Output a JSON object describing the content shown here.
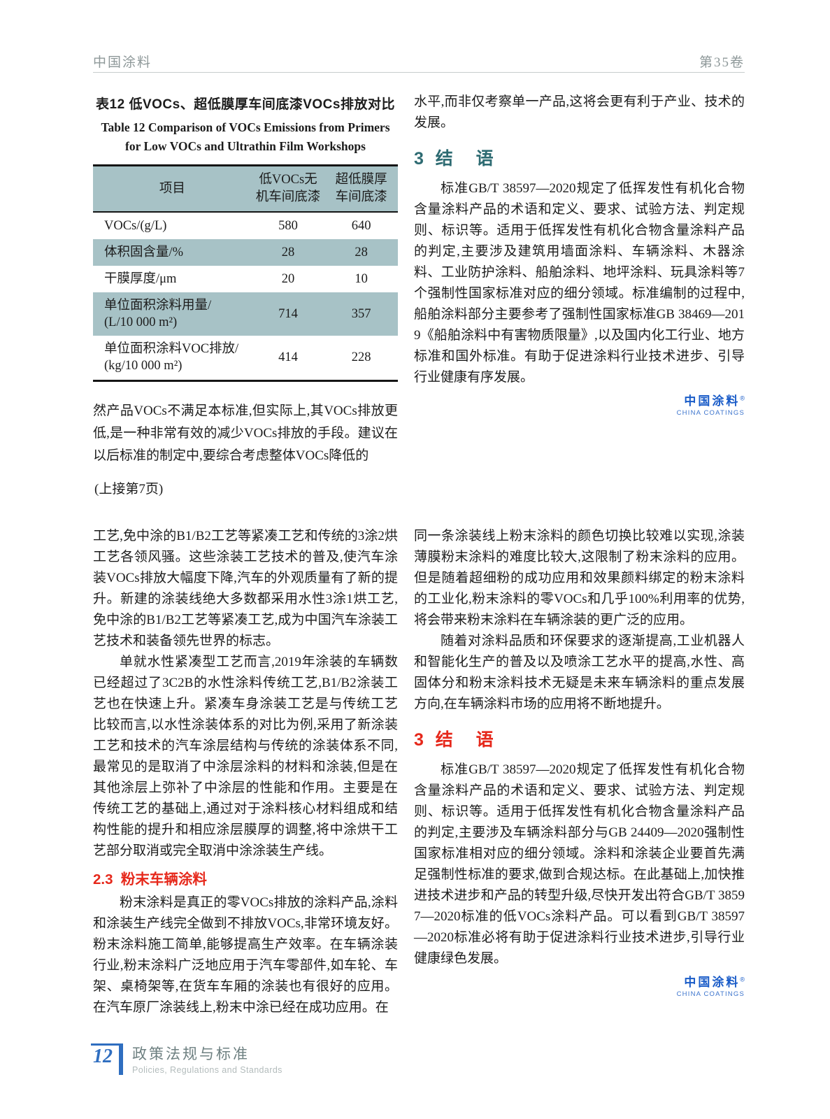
{
  "header": {
    "journal_name": "中国涂料",
    "volume": "第35卷"
  },
  "colors": {
    "table_shade": "#a7c2c6",
    "teal_heading": "#2e6b72",
    "red_heading": "#e6281b",
    "logo_blue": "#1a5cc8",
    "footer_blue": "#2f6ec0",
    "footer_gray": "#6e8081"
  },
  "table_section": {
    "title_zh": "表12  低VOCs、超低膜厚车间底漆VOCs排放对比",
    "title_en": "Table 12  Comparison of VOCs Emissions from Primers\nfor Low VOCs and Ultrathin Film Workshops",
    "columns": [
      "项目",
      "低VOCs无\n机车间底漆",
      "超低膜厚\n车间底漆"
    ],
    "rows": [
      {
        "label": "VOCs/(g/L)",
        "values": [
          "580",
          "640"
        ]
      },
      {
        "label": "体积固含量/%",
        "values": [
          "28",
          "28"
        ]
      },
      {
        "label": "干膜厚度/μm",
        "values": [
          "20",
          "10"
        ]
      },
      {
        "label": "单位面积涂料用量/\n(L/10 000 m²)",
        "values": [
          "714",
          "357"
        ]
      },
      {
        "label": "单位面积涂料VOC排放/\n(kg/10 000 m²)",
        "values": [
          "414",
          "228"
        ]
      }
    ]
  },
  "top_left": {
    "paragraph": "然产品VOCs不满足本标准,但实际上,其VOCs排放更低,是一种非常有效的减少VOCs排放的手段。建议在以后标准的制定中,要综合考虑整体VOCs降低的"
  },
  "top_right": {
    "paragraph_intro": "水平,而非仅考察单一产品,这将会更有利于产业、技术的发展。",
    "heading": "3  结    语",
    "paragraph": "标准GB/T 38597—2020规定了低挥发性有机化合物含量涂料产品的术语和定义、要求、试验方法、判定规则、标识等。适用于低挥发性有机化合物含量涂料产品的判定,主要涉及建筑用墙面涂料、车辆涂料、木器涂料、工业防护涂料、船舶涂料、地坪涂料、玩具涂料等7个强制性国家标准对应的细分领域。标准编制的过程中,船舶涂料部分主要参考了强制性国家标准GB 38469—2019《船舶涂料中有害物质限量》,以及国内化工行业、地方标准和国外标准。有助于促进涂料行业技术进步、引导行业健康有序发展。"
  },
  "logo": {
    "zh": "中国涂料",
    "mark": "®",
    "en": "CHINA COATINGS"
  },
  "continuation_note": "(上接第7页)",
  "bottom_left": {
    "p1": "工艺,免中涂的B1/B2工艺等紧凑工艺和传统的3涂2烘工艺各领风骚。这些涂装工艺技术的普及,使汽车涂装VOCs排放大幅度下降,汽车的外观质量有了新的提升。新建的涂装线绝大多数都采用水性3涂1烘工艺,免中涂的B1/B2工艺等紧凑工艺,成为中国汽车涂装工艺技术和装备领先世界的标志。",
    "p2": "单就水性紧凑型工艺而言,2019年涂装的车辆数已经超过了3C2B的水性涂料传统工艺,B1/B2涂装工艺也在快速上升。紧凑车身涂装工艺是与传统工艺比较而言,以水性涂装体系的对比为例,采用了新涂装工艺和技术的汽车涂层结构与传统的涂装体系不同,最常见的是取消了中涂层涂料的材料和涂装,但是在其他涂层上弥补了中涂层的性能和作用。主要是在传统工艺的基础上,通过对于涂料核心材料组成和结构性能的提升和相应涂层膜厚的调整,将中涂烘干工艺部分取消或完全取消中涂涂装生产线。",
    "sub_heading": "2.3  粉末车辆涂料",
    "p3": "粉末涂料是真正的零VOCs排放的涂料产品,涂料和涂装生产线完全做到不排放VOCs,非常环境友好。粉末涂料施工简单,能够提高生产效率。在车辆涂装行业,粉末涂料广泛地应用于汽车零部件,如车轮、车架、桌椅架等,在货车车厢的涂装也有很好的应用。在汽车原厂涂装线上,粉末中涂已经在成功应用。在"
  },
  "bottom_right": {
    "p1": "同一条涂装线上粉末涂料的颜色切换比较难以实现,涂装薄膜粉末涂料的难度比较大,这限制了粉末涂料的应用。但是随着超细粉的成功应用和效果颜料绑定的粉末涂料的工业化,粉末涂料的零VOCs和几乎100%利用率的优势,将会带来粉末涂料在车辆涂装的更广泛的应用。",
    "p2": "随着对涂料品质和环保要求的逐渐提高,工业机器人和智能化生产的普及以及喷涂工艺水平的提高,水性、高固体分和粉末涂料技术无疑是未来车辆涂料的重点发展方向,在车辆涂料市场的应用将不断地提升。",
    "heading": "3  结    语",
    "p3": "标准GB/T 38597—2020规定了低挥发性有机化合物含量涂料产品的术语和定义、要求、试验方法、判定规则、标识等。适用于低挥发性有机化合物含量涂料产品的判定,主要涉及车辆涂料部分与GB 24409—2020强制性国家标准相对应的细分领域。涂料和涂装企业要首先满足强制性标准的要求,做到合规达标。在此基础上,加快推进技术进步和产品的转型升级,尽快开发出符合GB/T 38597—2020标准的低VOCs涂料产品。可以看到GB/T 38597—2020标准必将有助于促进涂料行业技术进步,引导行业健康绿色发展。"
  },
  "footer": {
    "page_number": "12",
    "section_zh": "政策法规与标准",
    "section_en": "Policies, Regulations and Standards"
  }
}
